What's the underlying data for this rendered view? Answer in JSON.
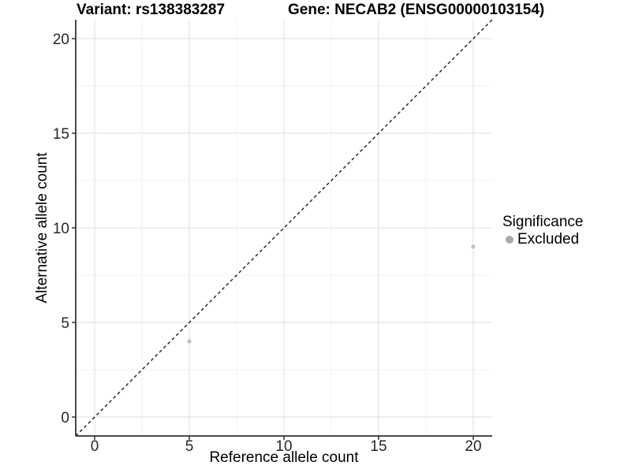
{
  "header": {
    "variant_title": "Variant: rs138383287",
    "gene_title": "Gene: NECAB2 (ENSG00000103154)"
  },
  "chart_data": {
    "type": "scatter",
    "xlabel": "Reference allele count",
    "ylabel": "Alternative allele count",
    "xlim": [
      -1,
      21
    ],
    "ylim": [
      -1,
      21
    ],
    "x_ticks": [
      0,
      5,
      10,
      15,
      20
    ],
    "y_ticks": [
      0,
      5,
      10,
      15,
      20
    ],
    "x_minor_ticks": [
      2.5,
      7.5,
      12.5,
      17.5
    ],
    "y_minor_ticks": [
      2.5,
      7.5,
      12.5,
      17.5
    ],
    "grid": true,
    "series": [
      {
        "name": "Excluded",
        "color": "#c0c0c0",
        "points": [
          [
            5,
            4
          ],
          [
            20,
            9
          ]
        ]
      }
    ],
    "reference_line": {
      "style": "dashed",
      "from": [
        -1,
        -1
      ],
      "to": [
        21,
        21
      ],
      "color": "#1a1a1a"
    },
    "legend": {
      "position": "right",
      "title": "Significance",
      "items": [
        {
          "label": "Excluded",
          "color": "#a9a9a9"
        }
      ]
    }
  },
  "style": {
    "background": "#ffffff",
    "grid_major_color": "#e4e4e4",
    "grid_minor_color": "#f1f1f1",
    "axis_line_color": "#333333",
    "tick_mark_color": "#333333",
    "tick_label_color": "#262626",
    "point_color": "#c0c0c0"
  }
}
